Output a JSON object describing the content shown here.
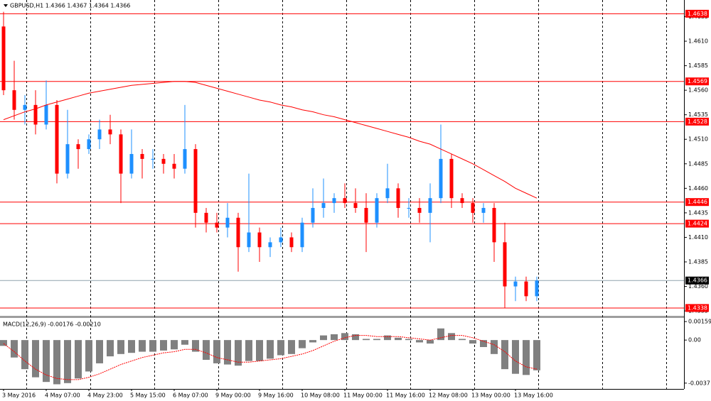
{
  "chart_data": [
    {
      "type": "candlestick",
      "title": "GBPUSD,H1  1.4366 1.4367 1.4364 1.4366",
      "categories": [
        "3 May 2016",
        null,
        null,
        null,
        "4 May 07:00",
        null,
        null,
        null,
        "4 May 23:00",
        null,
        null,
        null,
        "5 May 15:00",
        null,
        null,
        null,
        "6 May 07:00",
        null,
        null,
        null,
        "9 May 00:00",
        null,
        null,
        null,
        "9 May 16:00",
        null,
        null,
        null,
        "10 May 08:00",
        null,
        null,
        null,
        "11 May 00:00",
        null,
        null,
        null,
        "11 May 16:00",
        null,
        null,
        null,
        "12 May 08:00",
        null,
        null,
        null,
        "13 May 00:00",
        null,
        null,
        null,
        "13 May 16:00",
        null,
        null
      ],
      "open": [
        1.4625,
        1.456,
        1.454,
        1.4545,
        1.4525,
        1.4545,
        1.4475,
        1.4505,
        1.45,
        1.451,
        1.452,
        1.4515,
        1.4475,
        1.4495,
        1.449,
        1.449,
        1.4485,
        1.448,
        1.45,
        1.4435,
        1.4425,
        1.442,
        1.443,
        1.44,
        1.4415,
        1.44,
        1.4405,
        1.441,
        1.44,
        1.4425,
        1.444,
        1.4445,
        1.445,
        1.4445,
        1.444,
        1.4425,
        1.445,
        1.446,
        1.444,
        1.444,
        1.4435,
        1.445,
        1.449,
        1.445,
        1.4445,
        1.4435,
        1.444,
        1.4405,
        1.436,
        1.4365,
        1.435
      ],
      "high": [
        1.464,
        1.459,
        1.4555,
        1.456,
        1.457,
        1.455,
        1.454,
        1.451,
        1.4515,
        1.453,
        1.4535,
        1.452,
        1.452,
        1.45,
        1.45,
        1.4495,
        1.4495,
        1.4545,
        1.4505,
        1.444,
        1.4435,
        1.4445,
        1.4435,
        1.4475,
        1.442,
        1.441,
        1.442,
        1.4415,
        1.443,
        1.446,
        1.447,
        1.4455,
        1.4465,
        1.446,
        1.4455,
        1.4455,
        1.4485,
        1.4465,
        1.445,
        1.445,
        1.4465,
        1.4525,
        1.4495,
        1.4455,
        1.445,
        1.4445,
        1.4445,
        1.4425,
        1.437,
        1.437,
        1.437
      ],
      "low": [
        1.4555,
        1.453,
        1.4525,
        1.4515,
        1.452,
        1.4465,
        1.447,
        1.448,
        1.4495,
        1.45,
        1.4505,
        1.4445,
        1.447,
        1.447,
        1.448,
        1.4475,
        1.447,
        1.4475,
        1.442,
        1.4415,
        1.4415,
        1.441,
        1.4375,
        1.4395,
        1.4385,
        1.439,
        1.44,
        1.4395,
        1.4395,
        1.442,
        1.443,
        1.4435,
        1.444,
        1.4435,
        1.4395,
        1.442,
        1.4445,
        1.443,
        1.443,
        1.4425,
        1.4405,
        1.4445,
        1.444,
        1.444,
        1.4425,
        1.4425,
        1.4385,
        1.4338,
        1.4345,
        1.4345,
        1.4345
      ],
      "close": [
        1.456,
        1.454,
        1.4545,
        1.4525,
        1.4545,
        1.4475,
        1.4505,
        1.45,
        1.451,
        1.452,
        1.4515,
        1.4475,
        1.4495,
        1.449,
        1.449,
        1.4485,
        1.448,
        1.45,
        1.4435,
        1.4425,
        1.442,
        1.443,
        1.44,
        1.4415,
        1.44,
        1.4405,
        1.441,
        1.44,
        1.4425,
        1.444,
        1.4445,
        1.445,
        1.4445,
        1.444,
        1.4425,
        1.445,
        1.446,
        1.444,
        1.444,
        1.4435,
        1.445,
        1.449,
        1.445,
        1.4445,
        1.4435,
        1.444,
        1.4405,
        1.436,
        1.4365,
        1.435,
        1.4366
      ],
      "up_color": "#1e90ff",
      "down_color": "#ff0000",
      "ma": {
        "color": "#ff0000",
        "values": [
          1.453,
          1.4534,
          1.4538,
          1.4541,
          1.4545,
          1.4548,
          1.4551,
          1.4554,
          1.4557,
          1.4559,
          1.4561,
          1.4563,
          1.4565,
          1.4566,
          1.4567,
          1.4568,
          1.4569,
          1.4569,
          1.4568,
          1.4565,
          1.4562,
          1.4559,
          1.4556,
          1.4553,
          1.455,
          1.4548,
          1.4545,
          1.4543,
          1.454,
          1.4538,
          1.4535,
          1.4533,
          1.453,
          1.4527,
          1.4524,
          1.4521,
          1.4518,
          1.4515,
          1.4512,
          1.4508,
          1.4505,
          1.45,
          1.4495,
          1.449,
          1.4485,
          1.4479,
          1.4473,
          1.4467,
          1.446,
          1.4455,
          1.445
        ]
      },
      "levels": [
        1.4638,
        1.4569,
        1.4528,
        1.4446,
        1.4424,
        1.4338
      ],
      "level_color": "#ff0000",
      "last_price": 1.4366,
      "last_color": "#90a4ae",
      "ylim": [
        1.433,
        1.4652
      ],
      "yticks": [
        1.4635,
        {
          "value": 1.461,
          "label": "1.4610"
        },
        1.4585,
        {
          "value": 1.456,
          "label": "1.4560"
        },
        1.4535,
        {
          "value": 1.451,
          "label": "1.4510"
        },
        1.4485,
        {
          "value": 1.446,
          "label": "1.4460"
        },
        1.4435,
        {
          "value": 1.441,
          "label": "1.4410"
        },
        1.4385,
        {
          "value": 1.436,
          "label": "1.4360"
        },
        1.4335
      ]
    },
    {
      "type": "bar",
      "title": "MACD(12,26,9) -0.00176 -0.00210",
      "color": "#808080",
      "values": [
        -0.0005,
        -0.0015,
        -0.0025,
        -0.0032,
        -0.0036,
        -0.0038,
        -0.0037,
        -0.0033,
        -0.0027,
        -0.002,
        -0.0014,
        -0.0012,
        -0.0011,
        -0.001,
        -0.001,
        -0.0009,
        -0.0008,
        -0.0004,
        -0.001,
        -0.0017,
        -0.002,
        -0.0021,
        -0.0022,
        -0.0018,
        -0.0018,
        -0.0016,
        -0.0013,
        -0.0012,
        -0.0007,
        -0.0002,
        0.0004,
        0.0005,
        0.0006,
        0.0005,
        0.0001,
        0.0001,
        0.0004,
        0.0002,
        0.0001,
        -0.0002,
        -0.0003,
        0.001,
        0.0006,
        0.0001,
        -0.0003,
        -0.0006,
        -0.0012,
        -0.0025,
        -0.0029,
        -0.003,
        -0.0026
      ],
      "signal": {
        "color": "#ff0000",
        "values": [
          -0.0003,
          -0.001,
          -0.0018,
          -0.0025,
          -0.003,
          -0.0033,
          -0.0034,
          -0.0034,
          -0.0032,
          -0.0029,
          -0.0025,
          -0.0021,
          -0.0018,
          -0.0015,
          -0.0013,
          -0.0011,
          -0.001,
          -0.0008,
          -0.0008,
          -0.0011,
          -0.0015,
          -0.0017,
          -0.0019,
          -0.0019,
          -0.0018,
          -0.0017,
          -0.0016,
          -0.0014,
          -0.0012,
          -0.0009,
          -0.0005,
          -0.0001,
          0.0002,
          0.0004,
          0.0004,
          0.0003,
          0.0003,
          0.0003,
          0.0002,
          0.0001,
          0.0,
          0.0002,
          0.0004,
          0.0004,
          0.0002,
          -0.0001,
          -0.0004,
          -0.001,
          -0.0018,
          -0.0023,
          -0.0025
        ]
      },
      "ylim": [
        -0.0042,
        0.0019
      ],
      "yticks": [
        0.00159,
        {
          "value": 0,
          "label": "0.00"
        },
        -0.0037
      ]
    }
  ]
}
